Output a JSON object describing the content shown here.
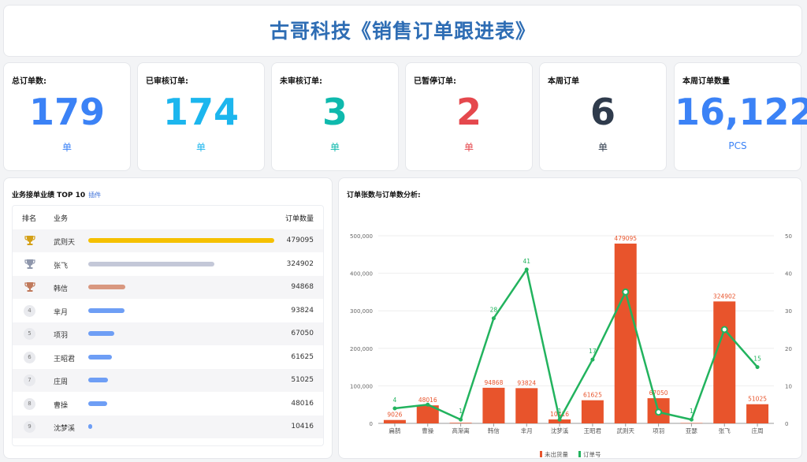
{
  "header": {
    "title": "古哥科技《销售订单跟进表》"
  },
  "kpis": [
    {
      "label": "总订单数:",
      "value": "179",
      "unit": "单",
      "color": "#3b82f6"
    },
    {
      "label": "已审核订单:",
      "value": "174",
      "unit": "单",
      "color": "#1cb6ee"
    },
    {
      "label": "未审核订单:",
      "value": "3",
      "unit": "单",
      "color": "#0fb9ad"
    },
    {
      "label": "已暂停订单:",
      "value": "2",
      "unit": "单",
      "color": "#e5484d"
    },
    {
      "label": "本周订单",
      "value": "6",
      "unit": "单",
      "color": "#2f3b4c"
    },
    {
      "label": "本周订单数量",
      "value": "16,122",
      "unit": "PCS",
      "color": "#3b82f6"
    }
  ],
  "ranking": {
    "title": "业务接单业绩 TOP 10",
    "plugin": "插件",
    "columns": {
      "rank": "排名",
      "name": "业务",
      "value": "订单数量"
    },
    "rows": [
      {
        "rank": "1",
        "icon": "gold-trophy-icon",
        "name": "武则天",
        "value": 479095,
        "label": "479095",
        "color": "#f5c000"
      },
      {
        "rank": "2",
        "icon": "silver-trophy-icon",
        "name": "张飞",
        "value": 324902,
        "label": "324902",
        "color": "#c4c8d8"
      },
      {
        "rank": "3",
        "icon": "bronze-trophy-icon",
        "name": "韩信",
        "value": 94868,
        "label": "94868",
        "color": "#d99880"
      },
      {
        "rank": "4",
        "name": "芈月",
        "value": 93824,
        "label": "93824",
        "color": "#6e9ef5"
      },
      {
        "rank": "5",
        "name": "项羽",
        "value": 67050,
        "label": "67050",
        "color": "#6e9ef5"
      },
      {
        "rank": "6",
        "name": "王昭君",
        "value": 61625,
        "label": "61625",
        "color": "#6e9ef5"
      },
      {
        "rank": "7",
        "name": "庄周",
        "value": 51025,
        "label": "51025",
        "color": "#6e9ef5"
      },
      {
        "rank": "8",
        "name": "曹操",
        "value": 48016,
        "label": "48016",
        "color": "#6e9ef5"
      },
      {
        "rank": "9",
        "name": "沈梦溪",
        "value": 10416,
        "label": "10416",
        "color": "#6e9ef5"
      }
    ]
  },
  "chart_data": {
    "type": "bar",
    "title": "订单张数与订单数分析:",
    "categories": [
      "扁鹊",
      "曹操",
      "高渐离",
      "韩信",
      "芈月",
      "沈梦溪",
      "王昭君",
      "武则天",
      "项羽",
      "亚瑟",
      "张飞",
      "庄周"
    ],
    "series": [
      {
        "name": "未出货量",
        "type": "bar",
        "axis": "left",
        "color": "#e8542c",
        "values": [
          9026,
          48016,
          1500,
          94868,
          93824,
          10416,
          61625,
          479095,
          67050,
          1000,
          324902,
          51025
        ],
        "labels": [
          "9026",
          "48016",
          "",
          "94868",
          "93824",
          "10416",
          "61625",
          "479095",
          "67050",
          "",
          "324902",
          "51025"
        ]
      },
      {
        "name": "订单号",
        "type": "line",
        "axis": "right",
        "color": "#22b35e",
        "values": [
          4,
          5,
          1,
          28,
          41,
          1,
          17,
          35,
          3,
          1,
          25,
          15
        ],
        "labels": [
          "4",
          "",
          "1",
          "28",
          "41",
          "1",
          "17",
          "",
          "",
          "1",
          "",
          "15"
        ]
      }
    ],
    "y_left": {
      "min": 0,
      "max": 500000,
      "ticks": [
        "0",
        "100,000",
        "200,000",
        "300,000",
        "400,000",
        "500,000"
      ]
    },
    "y_right": {
      "min": 0,
      "max": 50,
      "ticks": [
        "0",
        "10",
        "20",
        "30",
        "40",
        "50"
      ]
    },
    "legend_position": "bottom-center",
    "grid": true
  }
}
